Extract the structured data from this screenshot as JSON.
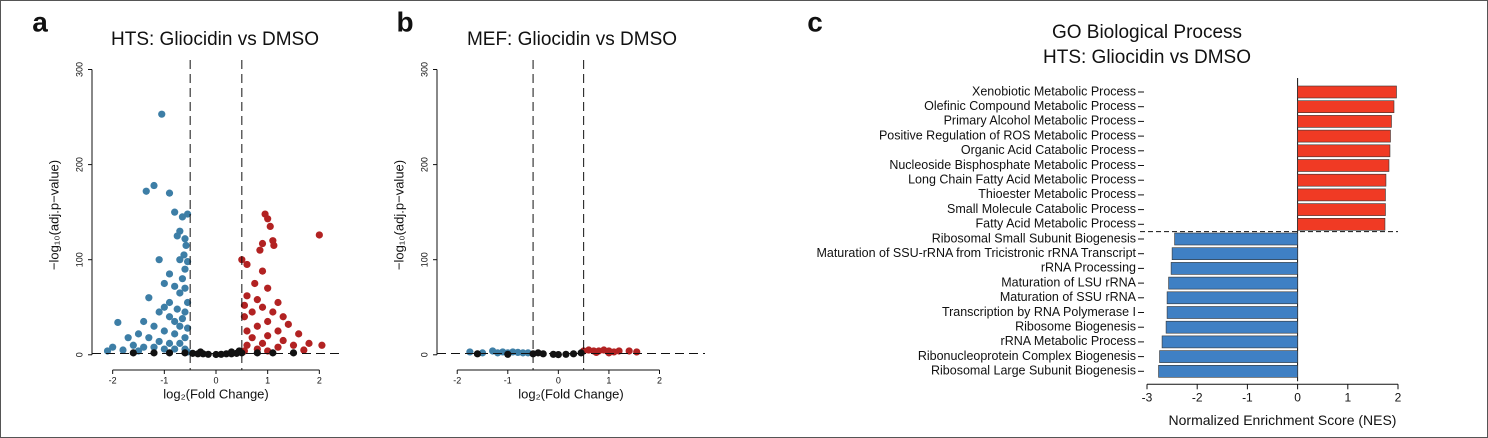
{
  "chart_data": [
    {
      "type": "scatter",
      "panel": "a",
      "title": "HTS: Gliocidin vs DMSO",
      "xlabel": "log₂(Fold Change)",
      "ylabel": "−log₁₀(adj.p−value)",
      "xlim": [
        -2.4,
        2.4
      ],
      "xticks": [
        -2,
        -1,
        0,
        1,
        2
      ],
      "ylim": [
        -16,
        310
      ],
      "yticks": [
        0,
        100,
        200,
        300
      ],
      "thresholds": {
        "x": [
          -0.5,
          0.5
        ],
        "y": 1.3
      },
      "series": [
        {
          "color": "#3d7ea6",
          "x": [
            -1.05,
            -1.35,
            -1.2,
            -0.9,
            -0.8,
            -0.65,
            -0.55,
            -0.7,
            -0.75,
            -0.6,
            -0.58,
            -0.62,
            -1.1,
            -0.7,
            -0.55,
            -0.6,
            -0.9,
            -0.65,
            -1.0,
            -0.8,
            -0.6,
            -0.7,
            -1.3,
            -0.9,
            -0.55,
            -1.0,
            -0.75,
            -1.1,
            -0.6,
            -0.9,
            -0.65,
            -1.9,
            -1.4,
            -0.8,
            -1.2,
            -0.7,
            -0.55,
            -1.0,
            -1.5,
            -0.8,
            -1.7,
            -1.3,
            -0.6,
            -1.1,
            -0.9,
            -0.7,
            -2.0,
            -1.6,
            -1.4,
            -1.2,
            -1.0,
            -0.8,
            -0.6,
            -1.8,
            -2.1,
            -1.5,
            -0.55
          ],
          "y": [
            253,
            172,
            178,
            170,
            150,
            145,
            148,
            130,
            125,
            122,
            115,
            105,
            100,
            100,
            98,
            90,
            85,
            80,
            75,
            72,
            70,
            65,
            60,
            55,
            55,
            50,
            48,
            45,
            45,
            40,
            38,
            34,
            35,
            35,
            30,
            30,
            28,
            25,
            22,
            22,
            18,
            18,
            18,
            14,
            12,
            12,
            8,
            10,
            8,
            8,
            6,
            6,
            6,
            5,
            4,
            4,
            3
          ]
        },
        {
          "color": "#b22222",
          "x": [
            0.95,
            1.0,
            1.05,
            1.1,
            1.12,
            0.9,
            0.85,
            2.0,
            0.5,
            0.6,
            0.9,
            0.75,
            1.0,
            0.6,
            0.8,
            1.2,
            0.55,
            0.9,
            1.1,
            0.7,
            1.3,
            0.55,
            1.0,
            1.4,
            0.8,
            1.2,
            0.6,
            1.6,
            1.0,
            0.7,
            1.3,
            1.8,
            0.9,
            1.5,
            0.6,
            2.05,
            1.2,
            0.8,
            1.7,
            1.0,
            0.55
          ],
          "y": [
            148,
            143,
            135,
            120,
            115,
            117,
            110,
            126,
            100,
            95,
            88,
            75,
            70,
            62,
            58,
            55,
            52,
            50,
            45,
            45,
            40,
            40,
            35,
            32,
            30,
            25,
            25,
            22,
            20,
            18,
            15,
            12,
            12,
            10,
            10,
            10,
            8,
            6,
            5,
            4,
            4
          ]
        },
        {
          "color": "#111111",
          "x": [
            -1.6,
            -1.2,
            -0.9,
            -0.6,
            -0.45,
            -0.35,
            -0.25,
            -0.15,
            0,
            0.1,
            0.2,
            0.3,
            0.4,
            0.5,
            0.8,
            1.1,
            1.5,
            -0.3,
            0.3,
            0.45
          ],
          "y": [
            2,
            2,
            2,
            2,
            1.5,
            1,
            1,
            0.5,
            0.3,
            0.5,
            1,
            1,
            1.5,
            2,
            2,
            2,
            2,
            3,
            3,
            4
          ]
        }
      ]
    },
    {
      "type": "scatter",
      "panel": "b",
      "title": "MEF: Gliocidin vs DMSO",
      "xlabel": "log₂(Fold Change)",
      "ylabel": "−log₁₀(adj.p−value)",
      "xlim": [
        -2.4,
        2.9
      ],
      "xticks": [
        -2,
        -1,
        0,
        1,
        2
      ],
      "ylim": [
        -16,
        310
      ],
      "yticks": [
        0,
        100,
        200,
        300
      ],
      "thresholds": {
        "x": [
          -0.5,
          0.5
        ],
        "y": 1.3
      },
      "series": [
        {
          "color": "#3d7ea6",
          "x": [
            -1.75,
            -1.3,
            -1.1,
            -1.0,
            -0.9,
            -0.8,
            -0.7,
            -0.6,
            -1.2,
            -1.5
          ],
          "y": [
            3,
            4,
            3,
            2,
            3,
            2.5,
            2,
            2,
            2,
            2
          ]
        },
        {
          "color": "#b22222",
          "x": [
            0.5,
            0.6,
            0.7,
            0.8,
            0.9,
            1.0,
            1.1,
            1.2,
            1.4,
            1.55,
            0.75,
            1.0
          ],
          "y": [
            4,
            5,
            4,
            4,
            5,
            4,
            3,
            4,
            4,
            3,
            2.5,
            2
          ]
        },
        {
          "color": "#111111",
          "x": [
            -1.6,
            -1.0,
            -0.5,
            -0.3,
            -0.1,
            0,
            0.15,
            0.3,
            0.45,
            -0.4
          ],
          "y": [
            1,
            0.5,
            1,
            1,
            0.5,
            0.2,
            0.5,
            1,
            2,
            2
          ]
        }
      ]
    },
    {
      "type": "barh",
      "panel": "c",
      "title": "GO Biological Process",
      "subtitle": "HTS: Gliocidin vs DMSO",
      "xlabel": "Normalized Enrichment Score (NES)",
      "xlim": [
        -3,
        2
      ],
      "xticks": [
        -3,
        -2,
        -1,
        0,
        1,
        2
      ],
      "pos_color": "#f03a24",
      "neg_color": "#3f80c4",
      "categories": [
        "Xenobiotic Metabolic Process",
        "Olefinic Compound Metabolic Process",
        "Primary Alcohol Metabolic Process",
        "Positive Regulation of ROS Metabolic Process",
        "Organic Acid Catabolic Process",
        "Nucleoside Bisphosphate Metabolic Process",
        "Long Chain Fatty Acid Metabolic Process",
        "Thioester Metabolic Process",
        "Small Molecule Catabolic Process",
        "Fatty Acid Metabolic Process",
        "Ribosomal Small Subunit Biogenesis",
        "Maturation of SSU-rRNA from Tricistronic rRNA Transcript",
        "rRNA Processing",
        "Maturation of LSU rRNA",
        "Maturation of SSU rRNA",
        "Transcription by RNA Polymerase I",
        "Ribosome Biogenesis",
        "rRNA Metabolic Process",
        "Ribonucleoprotein Complex Biogenesis",
        "Ribosomal Large Subunit Biogenesis"
      ],
      "values": [
        1.97,
        1.92,
        1.87,
        1.85,
        1.84,
        1.82,
        1.76,
        1.75,
        1.75,
        1.74,
        -2.45,
        -2.5,
        -2.52,
        -2.57,
        -2.6,
        -2.6,
        -2.62,
        -2.7,
        -2.75,
        -2.77
      ]
    }
  ]
}
